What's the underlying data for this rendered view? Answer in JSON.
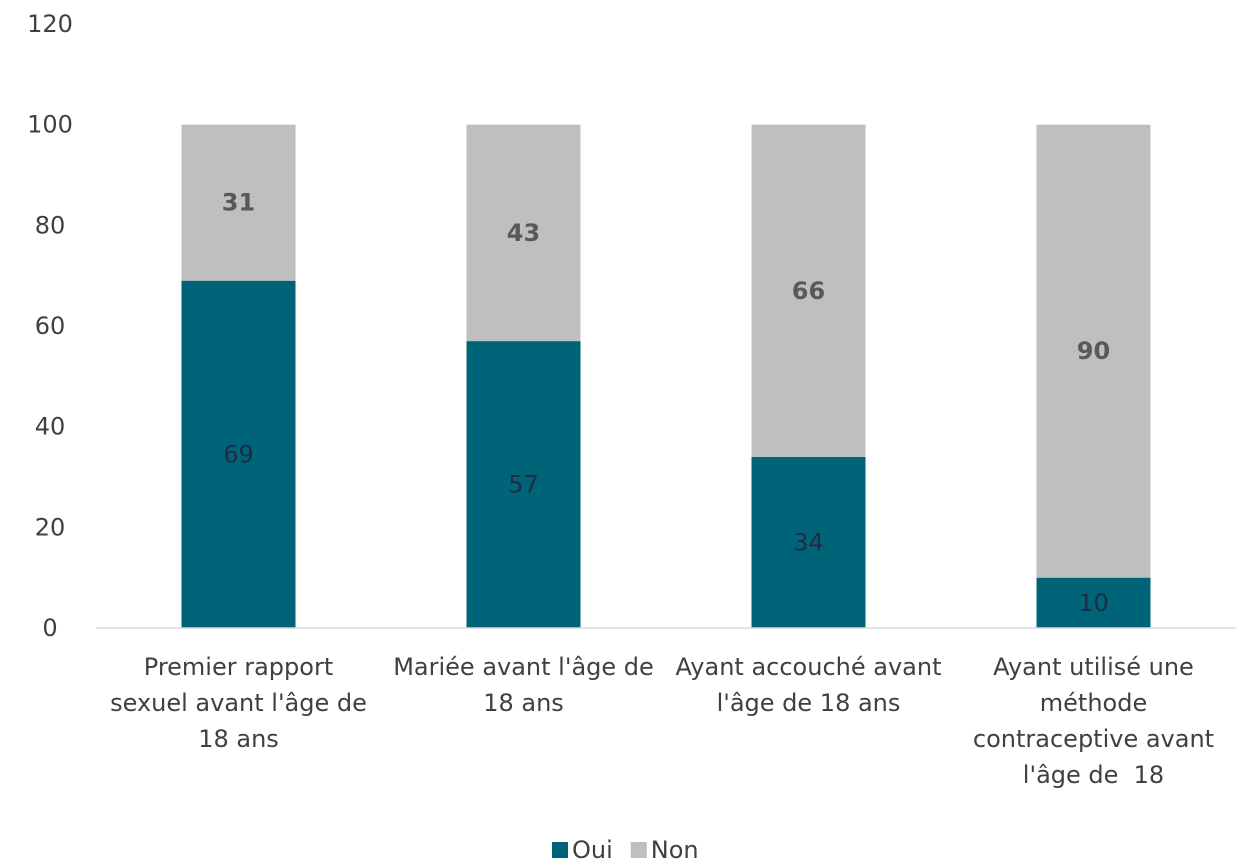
{
  "chart_data": {
    "type": "bar",
    "stacked": true,
    "categories": [
      [
        "Premier rapport",
        "sexuel avant l'âge de",
        "18 ans"
      ],
      [
        "Mariée avant l'âge de",
        "18 ans"
      ],
      [
        "Ayant accouché avant",
        "l'âge de 18 ans"
      ],
      [
        "Ayant utilisé une",
        "méthode",
        "contraceptive avant",
        "l'âge de  18"
      ]
    ],
    "series": [
      {
        "name": "Oui",
        "values": [
          69,
          57,
          34,
          10
        ],
        "color": "#006479",
        "label_style": "normal"
      },
      {
        "name": "Non",
        "values": [
          31,
          43,
          66,
          90
        ],
        "color": "#bfbfbf",
        "label_style": "bold"
      }
    ],
    "y_ticks": [
      0,
      20,
      40,
      60,
      80,
      100,
      120
    ],
    "ylim": [
      0,
      120
    ],
    "grid": false,
    "legend_position": "bottom"
  }
}
